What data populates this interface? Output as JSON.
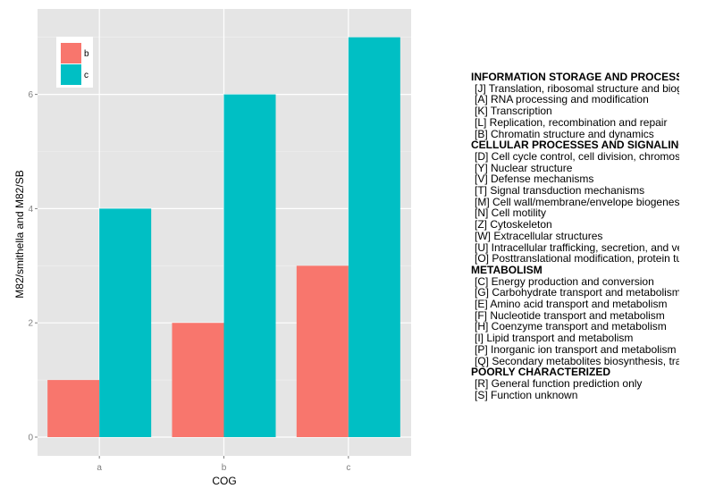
{
  "chart_data": {
    "type": "bar",
    "categories": [
      "a",
      "b",
      "c"
    ],
    "series": [
      {
        "name": "b",
        "values": [
          1,
          2,
          3
        ],
        "color": "#F8766D"
      },
      {
        "name": "c",
        "values": [
          4,
          6,
          7
        ],
        "color": "#00BFC4"
      }
    ],
    "xlabel": "COG",
    "ylabel": "M82/smithella  and  M82/SB",
    "ylim": [
      0,
      7.35
    ],
    "yticks": [
      "0",
      "2",
      "4",
      "6"
    ],
    "grid": true,
    "legend_position": "top-left"
  },
  "cog_legend": [
    {
      "category": "INFORMATION STORAGE AND PROCESSING",
      "items": [
        "[J] Translation, ribosomal structure and biogenesis",
        "[A] RNA processing and modification",
        "[K] Transcription",
        "[L] Replication, recombination and repair",
        "[B] Chromatin structure and dynamics"
      ]
    },
    {
      "category": "CELLULAR PROCESSES AND SIGNALING",
      "items": [
        "[D] Cell cycle control, cell division, chromosome partitioning",
        "[Y] Nuclear structure",
        "[V] Defense mechanisms",
        "[T] Signal transduction mechanisms",
        "[M] Cell wall/membrane/envelope biogenesis",
        "[N] Cell motility",
        "[Z] Cytoskeleton",
        "[W] Extracellular structures",
        "[U] Intracellular trafficking, secretion, and vesicular transport",
        "[O] Posttranslational modification, protein turnover, chaperones"
      ]
    },
    {
      "category": "METABOLISM",
      "items": [
        "[C] Energy production and conversion",
        "[G] Carbohydrate transport and metabolism",
        "[E] Amino acid transport and metabolism",
        "[F] Nucleotide transport and metabolism",
        "[H] Coenzyme transport and metabolism",
        "[I] Lipid transport and metabolism",
        "[P] Inorganic ion transport and metabolism",
        "[Q] Secondary metabolites biosynthesis, transport and catabolism"
      ]
    },
    {
      "category": "POORLY CHARACTERIZED",
      "items": [
        "[R] General function prediction only",
        "[S] Function unknown"
      ]
    }
  ]
}
